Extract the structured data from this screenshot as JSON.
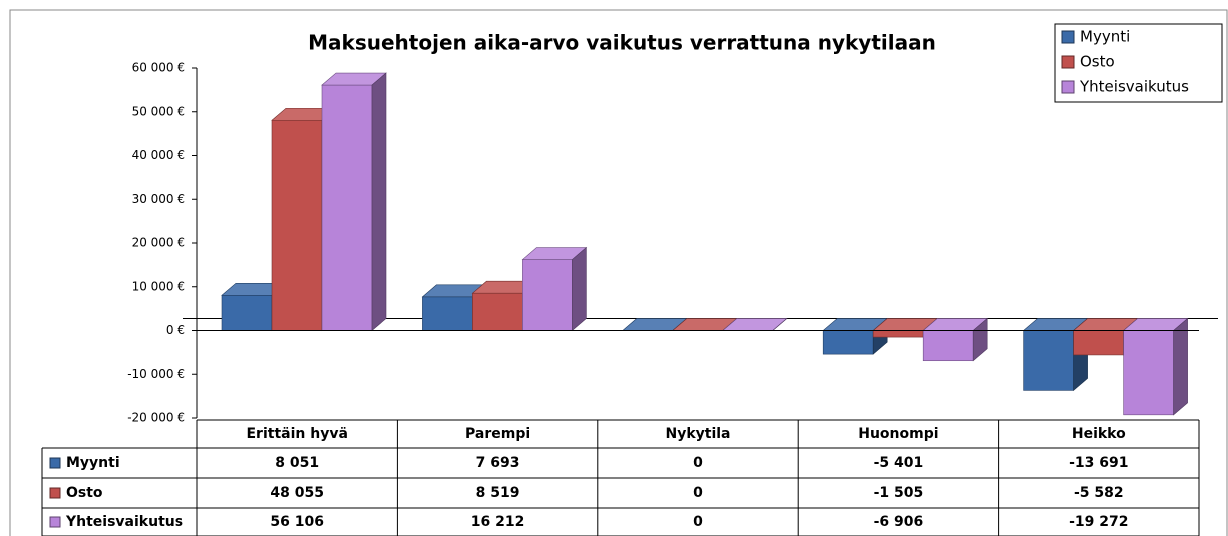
{
  "chart_data": {
    "type": "bar3d",
    "title": "Maksuehtojen aika-arvo vaikutus verrattuna nykytilaan",
    "categories": [
      "Erittäin hyvä",
      "Parempi",
      "Nykytila",
      "Huonompi",
      "Heikko"
    ],
    "series": [
      {
        "name": "Myynti",
        "color": "#3a6aa8",
        "values": [
          8051,
          7693,
          0,
          -5401,
          -13691
        ],
        "value_labels": [
          "8 051",
          "7 693",
          "0",
          "-5 401",
          "-13 691"
        ]
      },
      {
        "name": "Osto",
        "color": "#c0504d",
        "values": [
          48055,
          8519,
          0,
          -1505,
          -5582
        ],
        "value_labels": [
          "48 055",
          "8 519",
          "0",
          "-1 505",
          "-5 582"
        ]
      },
      {
        "name": "Yhteisvaikutus",
        "color": "#b784d9",
        "values": [
          56106,
          16212,
          0,
          -6906,
          -19272
        ],
        "value_labels": [
          "56 106",
          "16 212",
          "0",
          "-6 906",
          "-19 272"
        ]
      }
    ],
    "ylim": [
      -20000,
      60000
    ],
    "yticks": [
      {
        "value": -20000,
        "label": "-20 000 €"
      },
      {
        "value": -10000,
        "label": "-10 000 €"
      },
      {
        "value": 0,
        "label": "0 €"
      },
      {
        "value": 10000,
        "label": "10 000 €"
      },
      {
        "value": 20000,
        "label": "20 000 €"
      },
      {
        "value": 30000,
        "label": "30 000 €"
      },
      {
        "value": 40000,
        "label": "40 000 €"
      },
      {
        "value": 50000,
        "label": "50 000 €"
      },
      {
        "value": 60000,
        "label": "60 000 €"
      }
    ],
    "legend": "top-right",
    "grid": false
  }
}
